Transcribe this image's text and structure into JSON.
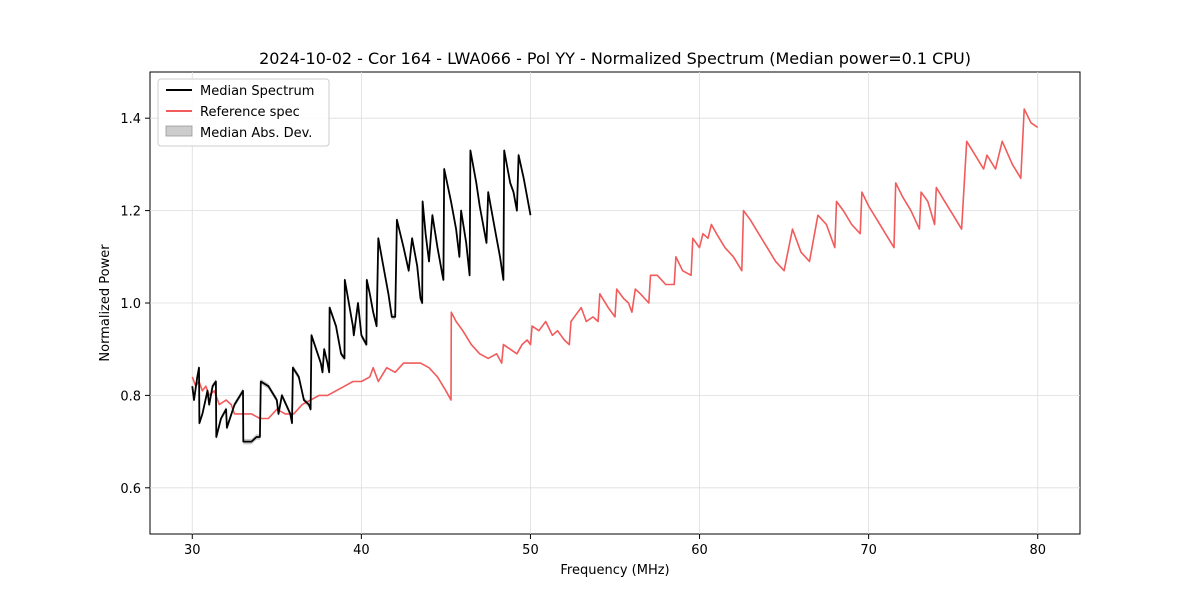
{
  "chart_data": {
    "type": "line",
    "title": "2024-10-02 - Cor 164 - LWA066 - Pol YY - Normalized Spectrum (Median power=0.1 CPU)",
    "xlabel": "Frequency (MHz)",
    "ylabel": "Normalized Power",
    "xlim": [
      27.5,
      82.5
    ],
    "ylim": [
      0.5,
      1.5
    ],
    "xticks": [
      30,
      40,
      50,
      60,
      70,
      80
    ],
    "yticks": [
      0.6,
      0.8,
      1.0,
      1.2,
      1.4
    ],
    "xtick_labels": [
      "30",
      "40",
      "50",
      "60",
      "70",
      "80"
    ],
    "ytick_labels": [
      "0.6",
      "0.8",
      "1.0",
      "1.2",
      "1.4"
    ],
    "grid": true,
    "legend_position": "top-left",
    "legend": [
      "Median Spectrum",
      "Reference spec",
      "Median Abs. Dev."
    ],
    "colors": {
      "median": "#000000",
      "reference": "#f15b5b",
      "mad": "#bdbdbd"
    },
    "series": [
      {
        "name": "Median Spectrum",
        "color": "#000000",
        "points": [
          [
            30.0,
            0.82
          ],
          [
            30.1,
            0.79
          ],
          [
            30.3,
            0.84
          ],
          [
            30.4,
            0.86
          ],
          [
            30.42,
            0.74
          ],
          [
            30.6,
            0.76
          ],
          [
            30.9,
            0.81
          ],
          [
            31.0,
            0.78
          ],
          [
            31.2,
            0.82
          ],
          [
            31.4,
            0.83
          ],
          [
            31.42,
            0.71
          ],
          [
            31.7,
            0.75
          ],
          [
            32.0,
            0.77
          ],
          [
            32.05,
            0.73
          ],
          [
            32.5,
            0.78
          ],
          [
            33.0,
            0.81
          ],
          [
            33.02,
            0.7
          ],
          [
            33.5,
            0.7
          ],
          [
            33.8,
            0.71
          ],
          [
            34.0,
            0.71
          ],
          [
            34.05,
            0.83
          ],
          [
            34.5,
            0.82
          ],
          [
            35.0,
            0.79
          ],
          [
            35.1,
            0.76
          ],
          [
            35.3,
            0.8
          ],
          [
            35.8,
            0.76
          ],
          [
            35.9,
            0.74
          ],
          [
            35.95,
            0.86
          ],
          [
            36.3,
            0.84
          ],
          [
            36.6,
            0.79
          ],
          [
            36.9,
            0.78
          ],
          [
            37.0,
            0.77
          ],
          [
            37.05,
            0.93
          ],
          [
            37.6,
            0.87
          ],
          [
            37.7,
            0.85
          ],
          [
            37.8,
            0.9
          ],
          [
            38.0,
            0.87
          ],
          [
            38.1,
            0.85
          ],
          [
            38.12,
            0.99
          ],
          [
            38.5,
            0.95
          ],
          [
            38.8,
            0.89
          ],
          [
            39.0,
            0.88
          ],
          [
            39.02,
            1.05
          ],
          [
            39.5,
            0.95
          ],
          [
            39.55,
            0.93
          ],
          [
            39.8,
            1.0
          ],
          [
            40.0,
            0.93
          ],
          [
            40.3,
            0.91
          ],
          [
            40.32,
            1.05
          ],
          [
            40.5,
            1.02
          ],
          [
            40.7,
            0.98
          ],
          [
            40.9,
            0.95
          ],
          [
            41.0,
            1.14
          ],
          [
            41.3,
            1.08
          ],
          [
            41.6,
            1.02
          ],
          [
            41.8,
            0.97
          ],
          [
            42.0,
            0.97
          ],
          [
            42.1,
            1.18
          ],
          [
            42.5,
            1.12
          ],
          [
            42.8,
            1.07
          ],
          [
            43.0,
            1.14
          ],
          [
            43.3,
            1.08
          ],
          [
            43.5,
            1.01
          ],
          [
            43.6,
            1.0
          ],
          [
            43.62,
            1.22
          ],
          [
            43.8,
            1.15
          ],
          [
            44.0,
            1.09
          ],
          [
            44.2,
            1.19
          ],
          [
            44.5,
            1.12
          ],
          [
            44.8,
            1.06
          ],
          [
            44.85,
            1.05
          ],
          [
            44.9,
            1.29
          ],
          [
            45.3,
            1.22
          ],
          [
            45.6,
            1.16
          ],
          [
            45.8,
            1.1
          ],
          [
            45.9,
            1.2
          ],
          [
            46.2,
            1.13
          ],
          [
            46.4,
            1.06
          ],
          [
            46.45,
            1.33
          ],
          [
            46.8,
            1.26
          ],
          [
            47.0,
            1.21
          ],
          [
            47.2,
            1.17
          ],
          [
            47.4,
            1.13
          ],
          [
            47.5,
            1.24
          ],
          [
            47.9,
            1.16
          ],
          [
            48.2,
            1.1
          ],
          [
            48.4,
            1.05
          ],
          [
            48.45,
            1.33
          ],
          [
            48.8,
            1.26
          ],
          [
            49.0,
            1.24
          ],
          [
            49.2,
            1.2
          ],
          [
            49.3,
            1.32
          ],
          [
            49.6,
            1.27
          ],
          [
            49.8,
            1.23
          ],
          [
            50.0,
            1.19
          ]
        ]
      },
      {
        "name": "Reference spec",
        "color": "#f15b5b",
        "points": [
          [
            30.0,
            0.84
          ],
          [
            30.2,
            0.82
          ],
          [
            30.4,
            0.83
          ],
          [
            30.6,
            0.81
          ],
          [
            30.8,
            0.82
          ],
          [
            31.0,
            0.8
          ],
          [
            31.3,
            0.81
          ],
          [
            31.6,
            0.78
          ],
          [
            32.0,
            0.79
          ],
          [
            32.3,
            0.78
          ],
          [
            32.5,
            0.76
          ],
          [
            33.0,
            0.76
          ],
          [
            33.5,
            0.76
          ],
          [
            34.0,
            0.75
          ],
          [
            34.5,
            0.75
          ],
          [
            35.0,
            0.77
          ],
          [
            35.5,
            0.76
          ],
          [
            36.0,
            0.76
          ],
          [
            36.5,
            0.78
          ],
          [
            37.0,
            0.79
          ],
          [
            37.5,
            0.8
          ],
          [
            38.0,
            0.8
          ],
          [
            38.5,
            0.81
          ],
          [
            39.0,
            0.82
          ],
          [
            39.5,
            0.83
          ],
          [
            40.0,
            0.83
          ],
          [
            40.5,
            0.84
          ],
          [
            40.7,
            0.86
          ],
          [
            41.0,
            0.83
          ],
          [
            41.5,
            0.86
          ],
          [
            42.0,
            0.85
          ],
          [
            42.5,
            0.87
          ],
          [
            43.0,
            0.87
          ],
          [
            43.5,
            0.87
          ],
          [
            44.0,
            0.86
          ],
          [
            44.5,
            0.84
          ],
          [
            45.0,
            0.81
          ],
          [
            45.3,
            0.79
          ],
          [
            45.32,
            0.98
          ],
          [
            45.6,
            0.96
          ],
          [
            46.0,
            0.94
          ],
          [
            46.5,
            0.91
          ],
          [
            47.0,
            0.89
          ],
          [
            47.5,
            0.88
          ],
          [
            48.0,
            0.89
          ],
          [
            48.3,
            0.87
          ],
          [
            48.4,
            0.91
          ],
          [
            48.8,
            0.9
          ],
          [
            49.2,
            0.89
          ],
          [
            49.5,
            0.91
          ],
          [
            49.8,
            0.92
          ],
          [
            50.0,
            0.91
          ],
          [
            50.1,
            0.95
          ],
          [
            50.5,
            0.94
          ],
          [
            50.9,
            0.96
          ],
          [
            51.3,
            0.93
          ],
          [
            51.6,
            0.94
          ],
          [
            52.0,
            0.92
          ],
          [
            52.3,
            0.91
          ],
          [
            52.4,
            0.96
          ],
          [
            52.8,
            0.98
          ],
          [
            53.0,
            0.99
          ],
          [
            53.3,
            0.96
          ],
          [
            53.7,
            0.97
          ],
          [
            54.0,
            0.96
          ],
          [
            54.1,
            1.02
          ],
          [
            54.6,
            0.99
          ],
          [
            55.0,
            0.97
          ],
          [
            55.1,
            1.03
          ],
          [
            55.5,
            1.01
          ],
          [
            55.8,
            1.0
          ],
          [
            56.0,
            0.98
          ],
          [
            56.2,
            1.03
          ],
          [
            56.5,
            1.02
          ],
          [
            57.0,
            1.0
          ],
          [
            57.1,
            1.06
          ],
          [
            57.5,
            1.06
          ],
          [
            58.0,
            1.04
          ],
          [
            58.5,
            1.04
          ],
          [
            58.6,
            1.1
          ],
          [
            59.0,
            1.07
          ],
          [
            59.5,
            1.06
          ],
          [
            59.6,
            1.14
          ],
          [
            60.0,
            1.12
          ],
          [
            60.2,
            1.15
          ],
          [
            60.5,
            1.14
          ],
          [
            60.7,
            1.17
          ],
          [
            61.0,
            1.15
          ],
          [
            61.5,
            1.12
          ],
          [
            62.0,
            1.1
          ],
          [
            62.5,
            1.07
          ],
          [
            62.6,
            1.2
          ],
          [
            63.0,
            1.18
          ],
          [
            63.5,
            1.15
          ],
          [
            64.0,
            1.12
          ],
          [
            64.5,
            1.09
          ],
          [
            65.0,
            1.07
          ],
          [
            65.5,
            1.16
          ],
          [
            66.0,
            1.11
          ],
          [
            66.5,
            1.09
          ],
          [
            67.0,
            1.19
          ],
          [
            67.5,
            1.17
          ],
          [
            68.0,
            1.12
          ],
          [
            68.1,
            1.22
          ],
          [
            68.5,
            1.2
          ],
          [
            69.0,
            1.17
          ],
          [
            69.5,
            1.15
          ],
          [
            69.6,
            1.24
          ],
          [
            70.0,
            1.21
          ],
          [
            70.5,
            1.18
          ],
          [
            71.0,
            1.15
          ],
          [
            71.5,
            1.12
          ],
          [
            71.6,
            1.26
          ],
          [
            72.0,
            1.23
          ],
          [
            72.5,
            1.2
          ],
          [
            73.0,
            1.16
          ],
          [
            73.1,
            1.24
          ],
          [
            73.5,
            1.22
          ],
          [
            73.9,
            1.17
          ],
          [
            74.0,
            1.25
          ],
          [
            74.5,
            1.22
          ],
          [
            75.0,
            1.19
          ],
          [
            75.5,
            1.16
          ],
          [
            75.8,
            1.35
          ],
          [
            76.3,
            1.32
          ],
          [
            76.8,
            1.29
          ],
          [
            77.0,
            1.32
          ],
          [
            77.5,
            1.29
          ],
          [
            77.9,
            1.35
          ],
          [
            78.5,
            1.3
          ],
          [
            79.0,
            1.27
          ],
          [
            79.2,
            1.42
          ],
          [
            79.6,
            1.39
          ],
          [
            80.0,
            1.38
          ]
        ]
      }
    ],
    "mad_band": {
      "name": "Median Abs. Dev.",
      "half_width": 0.006,
      "series": "Median Spectrum"
    }
  }
}
